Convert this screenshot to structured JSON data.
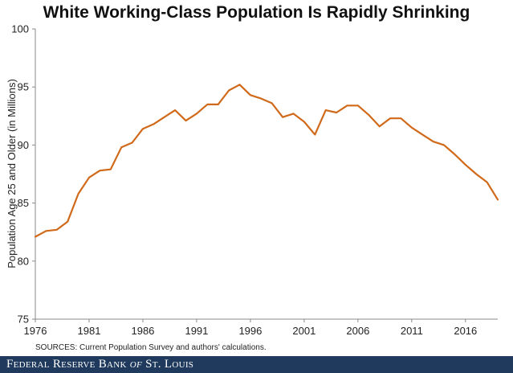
{
  "chart_data": {
    "type": "line",
    "title": "White Working-Class Population Is Rapidly Shrinking",
    "ylabel": "Population Age 25 and Older (in Millions)",
    "xlabel": "",
    "ylim": [
      75,
      100
    ],
    "xlim": [
      1976,
      2019
    ],
    "y_ticks": [
      75,
      80,
      85,
      90,
      95,
      100
    ],
    "x_ticks": [
      1976,
      1981,
      1986,
      1991,
      1996,
      2001,
      2006,
      2011,
      2016
    ],
    "grid": false,
    "line_color": "#d06a1a",
    "x": [
      1976,
      1977,
      1978,
      1979,
      1980,
      1981,
      1982,
      1983,
      1984,
      1985,
      1986,
      1987,
      1988,
      1989,
      1990,
      1991,
      1992,
      1993,
      1994,
      1995,
      1996,
      1997,
      1998,
      1999,
      2000,
      2001,
      2002,
      2003,
      2004,
      2005,
      2006,
      2007,
      2008,
      2009,
      2010,
      2011,
      2012,
      2013,
      2014,
      2015,
      2016,
      2017,
      2018,
      2019
    ],
    "series": [
      {
        "values": [
          82.1,
          82.6,
          82.7,
          83.4,
          85.8,
          87.2,
          87.8,
          87.9,
          89.8,
          90.2,
          91.4,
          91.8,
          92.4,
          93.0,
          92.1,
          92.7,
          93.5,
          93.5,
          94.7,
          95.2,
          94.3,
          94.0,
          93.6,
          92.4,
          92.7,
          92.0,
          90.9,
          93.0,
          92.8,
          93.4,
          93.4,
          92.6,
          91.6,
          92.3,
          92.3,
          91.5,
          90.9,
          90.3,
          90.0,
          89.2,
          88.3,
          87.5,
          86.8,
          85.3
        ]
      }
    ]
  },
  "source_text": "SOURCES: Current Population Survey and authors' calculations.",
  "footer": {
    "brand_before": "Federal Reserve Bank ",
    "brand_of": "of",
    "brand_after": " St. Louis",
    "bg_color": "#1f3a5c"
  }
}
